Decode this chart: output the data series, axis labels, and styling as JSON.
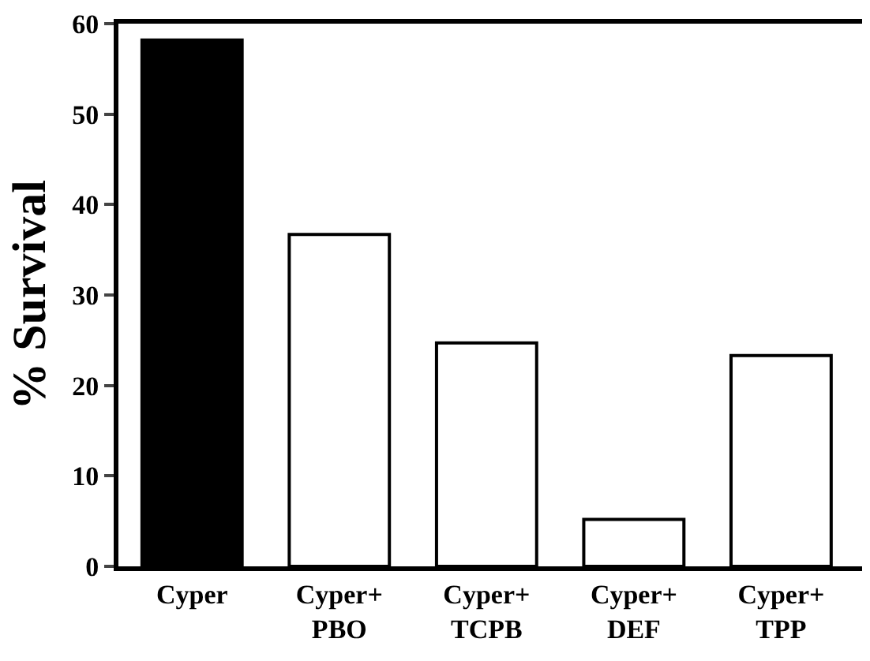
{
  "chart_data": {
    "type": "bar",
    "ylabel": "% Survival",
    "categories": [
      "Cyper",
      "Cyper+\nPBO",
      "Cyper+\nTCPB",
      "Cyper+\nDEF",
      "Cyper+\nTPP"
    ],
    "values": [
      58.2,
      36.7,
      24.7,
      5.2,
      23.3
    ],
    "colors": [
      "#000000",
      "#ffffff",
      "#ffffff",
      "#ffffff",
      "#ffffff"
    ],
    "ylim": [
      0,
      60
    ],
    "yticks": [
      0,
      10,
      20,
      30,
      40,
      50,
      60
    ]
  }
}
